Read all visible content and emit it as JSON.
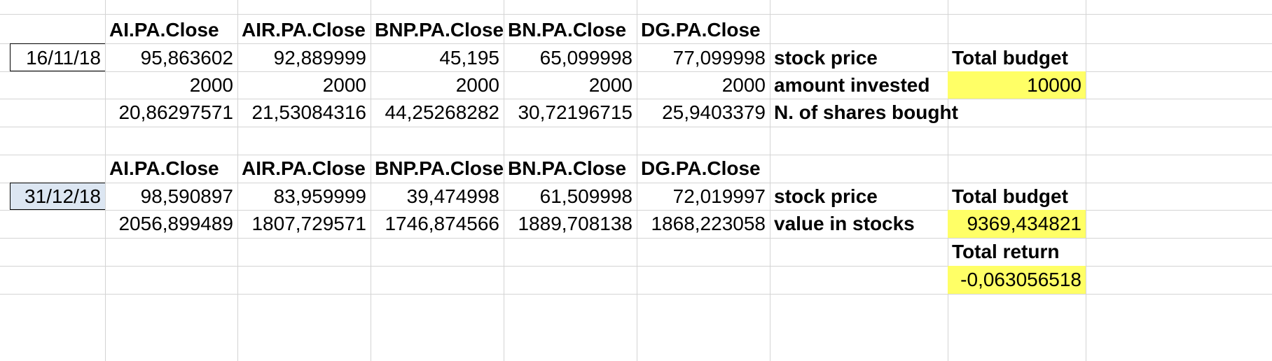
{
  "colors": {
    "highlight": "#ffff66",
    "selected_date_fill": "#dce6f2",
    "grid": "#d4d4d4"
  },
  "section1": {
    "headers": [
      "AI.PA.Close",
      "AIR.PA.Close",
      "BNP.PA.Close",
      "BN.PA.Close",
      "DG.PA.Close"
    ],
    "date": "16/11/18",
    "prices": [
      "95,863602",
      "92,889999",
      "45,195",
      "65,099998",
      "77,099998"
    ],
    "price_label": "stock price",
    "budget_label": "Total budget",
    "amounts": [
      "2000",
      "2000",
      "2000",
      "2000",
      "2000"
    ],
    "amount_label": "amount invested",
    "budget_value": "10000",
    "shares": [
      "20,86297571",
      "21,53084316",
      "44,25268282",
      "30,72196715",
      "25,9403379"
    ],
    "shares_label": "N. of shares bought"
  },
  "section2": {
    "headers": [
      "AI.PA.Close",
      "AIR.PA.Close",
      "BNP.PA.Close",
      "BN.PA.Close",
      "DG.PA.Close"
    ],
    "date": "31/12/18",
    "prices": [
      "98,590897",
      "83,959999",
      "39,474998",
      "61,509998",
      "72,019997"
    ],
    "price_label": "stock price",
    "budget_label": "Total budget",
    "values": [
      "2056,899489",
      "1807,729571",
      "1746,874566",
      "1889,708138",
      "1868,223058"
    ],
    "value_label": "value in stocks",
    "budget_value": "9369,434821",
    "return_label": "Total return",
    "return_value": "-0,063056518"
  }
}
